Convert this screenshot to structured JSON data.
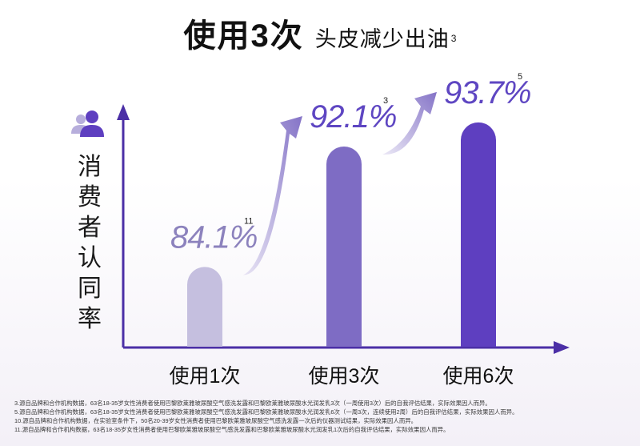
{
  "title": {
    "main": "使用3次",
    "sub": "头皮减少出油",
    "note": "3"
  },
  "y_axis_label": "消费者认同率",
  "chart_data": {
    "type": "bar",
    "categories": [
      "使用1次",
      "使用3次",
      "使用6次"
    ],
    "values": [
      84.1,
      92.1,
      93.7
    ],
    "value_labels": [
      "84.1%",
      "92.1%",
      "93.7%"
    ],
    "value_notes": [
      "11",
      "3",
      "5"
    ],
    "ylabel": "消费者认同率",
    "colors": [
      "#c5bfdf",
      "#7e6cc4",
      "#5e3fc0"
    ]
  },
  "footnotes": [
    "3.源自品牌和合作机构数据，63名18-35岁女性消费者使用巴黎欧莱雅玻尿酸空气感洗发露和巴黎欧莱雅玻尿酸水光润发乳3次（一周使用3次）后的自我评估结果，实际效果因人而异。",
    "5.源自品牌和合作机构数据，63名18-35岁女性消费者使用巴黎欧莱雅玻尿酸空气感洗发露和巴黎欧莱雅玻尿酸水光润发乳6次（一周3次，连续使用2周）后的自我评估结果，实际效果因人而异。",
    "10.源自品牌和合作机构数据，在实验室条件下，50名20-39岁女性消费者使用巴黎欧莱雅玻尿酸空气感洗发露一次后的仪器测试结果，实际效果因人而异。",
    "11.源自品牌和合作机构数据，63名18-35岁女性消费者使用巴黎欧莱雅玻尿酸空气感洗发露和巴黎欧莱雅玻尿酸水光润发乳1次后的自我评估结果，实际效果因人而异。"
  ]
}
